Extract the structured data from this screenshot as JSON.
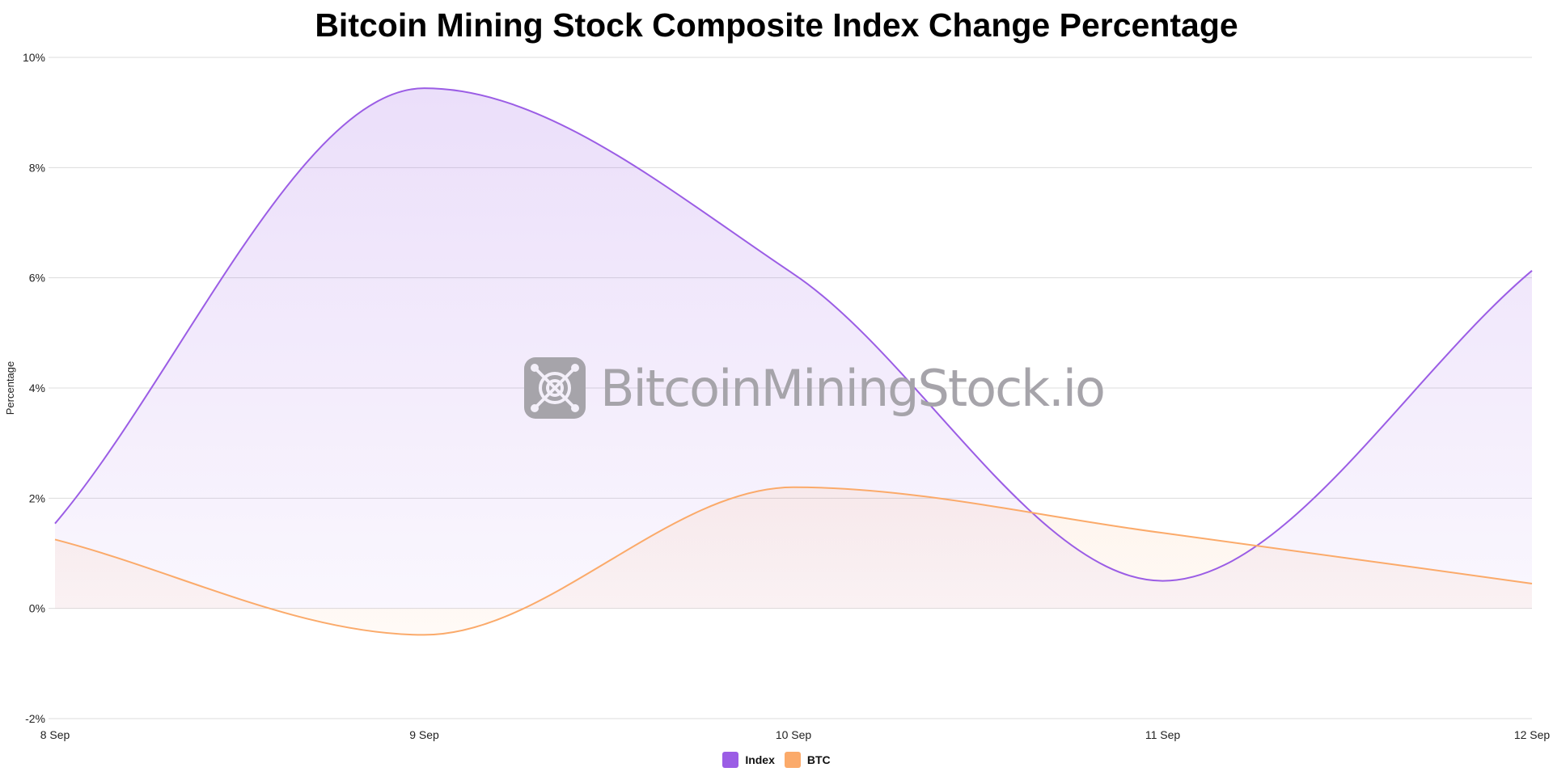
{
  "chart_data": {
    "type": "area",
    "title": "Bitcoin Mining Stock Composite Index Change Percentage",
    "xlabel": "",
    "ylabel": "Percentage",
    "categories": [
      "8 Sep",
      "9 Sep",
      "10 Sep",
      "11 Sep",
      "12 Sep"
    ],
    "ylim": [
      -2,
      10
    ],
    "yticks": [
      -2,
      0,
      2,
      4,
      6,
      8,
      10
    ],
    "ytick_labels": [
      "-2%",
      "0%",
      "2%",
      "4%",
      "6%",
      "8%",
      "10%"
    ],
    "grid": true,
    "legend_position": "bottom-center",
    "series": [
      {
        "name": "Index",
        "color": "#9b5de5",
        "values": [
          1.54,
          9.44,
          6.07,
          0.5,
          6.13
        ]
      },
      {
        "name": "BTC",
        "color": "#fbaa6a",
        "values": [
          1.25,
          -0.48,
          2.2,
          1.37,
          0.45
        ]
      }
    ]
  },
  "watermark": {
    "text": "BitcoinMiningStock.io",
    "icon": "mining-chip-icon"
  }
}
